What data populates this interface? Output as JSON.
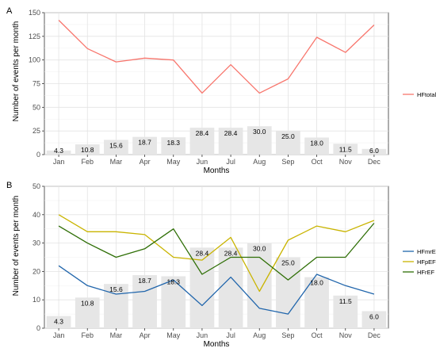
{
  "chart_data": [
    {
      "type": "line",
      "panel_label": "A",
      "categories": [
        "Jan",
        "Feb",
        "Mar",
        "Apr",
        "May",
        "Jun",
        "Jul",
        "Aug",
        "Sep",
        "Oct",
        "Nov",
        "Dec"
      ],
      "xlabel": "Months",
      "ylabel": "Number of events per month",
      "ylim": [
        0,
        150
      ],
      "yticks": [
        0,
        25,
        50,
        75,
        100,
        125,
        150
      ],
      "grid": true,
      "legend_position": "right",
      "bars": {
        "values": [
          4.3,
          10.8,
          15.6,
          18.7,
          18.3,
          28.4,
          28.4,
          30.0,
          25.0,
          18.0,
          11.5,
          6.0
        ],
        "labels": [
          "4.3",
          "10.8",
          "15.6",
          "18.7",
          "18.3",
          "28.4",
          "28.4",
          "30.0",
          "25.0",
          "18.0",
          "11.5",
          "6.0"
        ],
        "color": "#e6e6e6"
      },
      "series": [
        {
          "name": "HFtotal",
          "color": "#f8766d",
          "values": [
            142,
            112,
            98,
            102,
            100,
            65,
            95,
            65,
            80,
            124,
            108,
            137
          ]
        }
      ]
    },
    {
      "type": "line",
      "panel_label": "B",
      "categories": [
        "Jan",
        "Feb",
        "Mar",
        "Apr",
        "May",
        "Jun",
        "Jul",
        "Aug",
        "Sep",
        "Oct",
        "Nov",
        "Dec"
      ],
      "xlabel": "Months",
      "ylabel": "Number of events per month",
      "ylim": [
        0,
        50
      ],
      "yticks": [
        0,
        10,
        20,
        30,
        40,
        50
      ],
      "grid": true,
      "legend_position": "right",
      "bars": {
        "values": [
          4.3,
          10.8,
          15.6,
          18.7,
          18.3,
          28.4,
          28.4,
          30.0,
          25.0,
          18.0,
          11.5,
          6.0
        ],
        "labels": [
          "4.3",
          "10.8",
          "15.6",
          "18.7",
          "18.3",
          "28.4",
          "28.4",
          "30.0",
          "25.0",
          "18.0",
          "11.5",
          "6.0"
        ],
        "color": "#e6e6e6"
      },
      "series": [
        {
          "name": "HFmrEF",
          "color": "#2166ac",
          "values": [
            22,
            15,
            12,
            13,
            17,
            8,
            18,
            7,
            5,
            19,
            15,
            12
          ]
        },
        {
          "name": "HFpEF",
          "color": "#c9b400",
          "values": [
            40,
            34,
            34,
            33,
            25,
            24,
            32,
            13,
            31,
            36,
            34,
            38
          ]
        },
        {
          "name": "HFrEF",
          "color": "#2e6e05",
          "values": [
            36,
            30,
            25,
            28,
            35,
            19,
            25,
            25,
            17,
            25,
            25,
            37
          ]
        }
      ]
    }
  ]
}
